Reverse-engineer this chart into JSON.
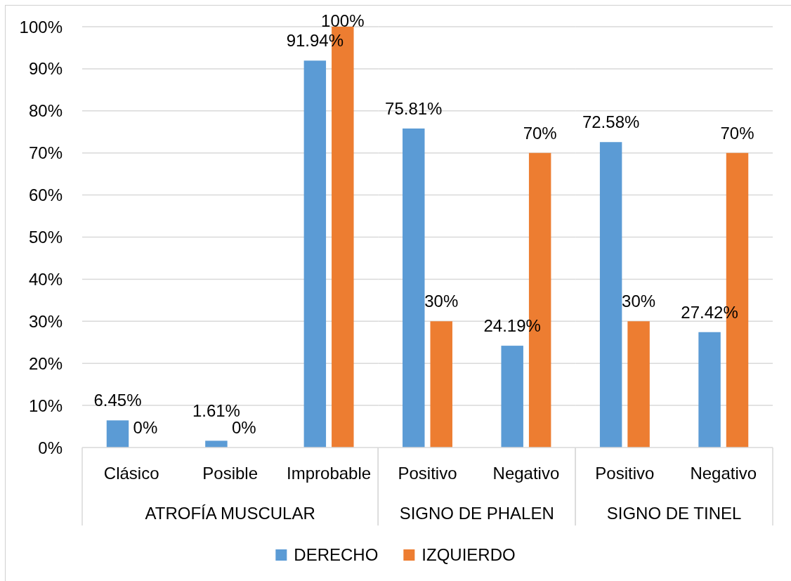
{
  "chart_data": [
    {
      "type": "bar",
      "categories": [
        "Clásico",
        "Posible",
        "Improbable"
      ],
      "xlabel": "ATROFÍA MUSCULAR",
      "series": [
        {
          "name": "DERECHO",
          "color": "#5b9bd5",
          "values": [
            6.45,
            1.61,
            91.94
          ],
          "value_labels": [
            "6.45%",
            "1.61%",
            "91.94%"
          ]
        },
        {
          "name": "IZQUIERDO",
          "color": "#ed7d31",
          "values": [
            0,
            0,
            100
          ],
          "value_labels": [
            "0%",
            "0%",
            "100%"
          ]
        }
      ],
      "ylim": [
        0,
        100
      ],
      "yticks": [
        {
          "value": 0,
          "label": "0%"
        },
        {
          "value": 10,
          "label": "10%"
        },
        {
          "value": 20,
          "label": "20%"
        },
        {
          "value": 30,
          "label": "30%"
        },
        {
          "value": 40,
          "label": "40%"
        },
        {
          "value": 50,
          "label": "50%"
        },
        {
          "value": 60,
          "label": "60%"
        },
        {
          "value": 70,
          "label": "70%"
        },
        {
          "value": 80,
          "label": "80%"
        },
        {
          "value": 90,
          "label": "90%"
        },
        {
          "value": 100,
          "label": "100%"
        }
      ],
      "grid": "y",
      "legend": "bottom"
    },
    {
      "type": "bar",
      "categories": [
        "Positivo",
        "Negativo"
      ],
      "xlabel": "SIGNO DE PHALEN",
      "series": [
        {
          "color": "#5b9bd5",
          "values": [
            75.81,
            24.19
          ],
          "value_labels": [
            "75.81%",
            "24.19%"
          ]
        },
        {
          "color": "#ed7d31",
          "values": [
            30,
            70
          ],
          "value_labels": [
            "30%",
            "70%"
          ]
        }
      ],
      "ylim": [
        0,
        100
      ],
      "yticks": [
        0,
        10,
        20,
        30,
        40,
        50,
        60,
        70,
        80,
        90,
        100
      ],
      "grid": "y",
      "tick_labels": "x"
    },
    {
      "type": "bar",
      "categories": [
        "Positivo",
        "Negativo"
      ],
      "xlabel": "SIGNO DE TINEL",
      "series": [
        {
          "color": "#5b9bd5",
          "values": [
            72.58,
            27.42
          ],
          "value_labels": [
            "72.58%",
            "27.42%"
          ]
        },
        {
          "color": "#ed7d31",
          "values": [
            30,
            70
          ],
          "value_labels": [
            "30%",
            "70%"
          ]
        }
      ],
      "ylim": [
        0,
        100
      ],
      "yticks": [
        0,
        10,
        20,
        30,
        40,
        50,
        60,
        70,
        80,
        90,
        100
      ],
      "grid": "y",
      "tick_labels": "x"
    }
  ]
}
